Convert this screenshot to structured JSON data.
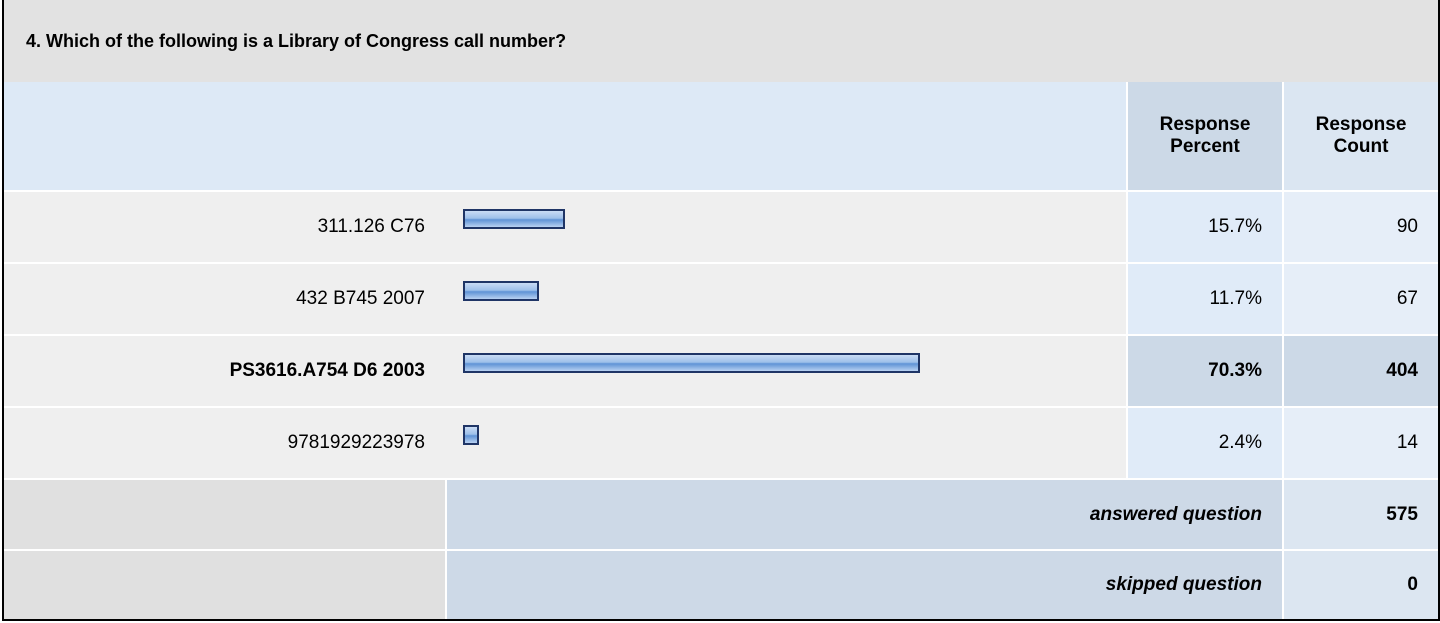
{
  "question": "4. Which of the following is a Library of Congress call number?",
  "headers": {
    "percent": "Response Percent",
    "count": "Response Count"
  },
  "rows": [
    {
      "answer": "311.126 C76",
      "percent": 15.7,
      "percent_label": "15.7%",
      "count": 90,
      "highlighted": false
    },
    {
      "answer": "432 B745 2007",
      "percent": 11.7,
      "percent_label": "11.7%",
      "count": 67,
      "highlighted": false
    },
    {
      "answer": "PS3616.A754 D6 2003",
      "percent": 70.3,
      "percent_label": "70.3%",
      "count": 404,
      "highlighted": true
    },
    {
      "answer": "9781929223978",
      "percent": 2.4,
      "percent_label": "2.4%",
      "count": 14,
      "highlighted": false
    }
  ],
  "summary": [
    {
      "label": "answered question",
      "count": 575
    },
    {
      "label": "skipped question",
      "count": 0
    }
  ]
}
